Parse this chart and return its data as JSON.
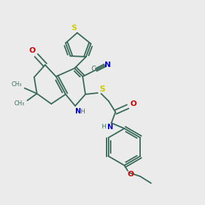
{
  "background_color": "#ebebeb",
  "bond_color": "#3a6b5a",
  "atom_colors": {
    "S": "#cccc00",
    "N": "#0000cc",
    "O": "#cc0000",
    "C": "#3a6b5a",
    "H": "#3a6b5a"
  },
  "figsize": [
    3.0,
    3.0
  ],
  "dpi": 100
}
